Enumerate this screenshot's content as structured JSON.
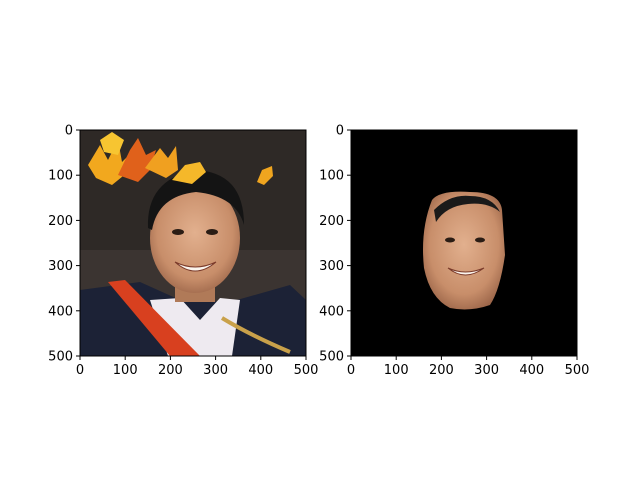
{
  "chart_data": [
    {
      "type": "image",
      "title": "",
      "xlabel": "",
      "ylabel": "",
      "xlim": [
        0,
        500
      ],
      "ylim": [
        500,
        0
      ],
      "xticks": [
        "0",
        "100",
        "200",
        "300",
        "400",
        "500"
      ],
      "yticks": [
        "0",
        "100",
        "200",
        "300",
        "400",
        "500"
      ],
      "content": "portrait-photo",
      "background_color": "#3a3330"
    },
    {
      "type": "image",
      "title": "",
      "xlabel": "",
      "ylabel": "",
      "xlim": [
        0,
        500
      ],
      "ylim": [
        500,
        0
      ],
      "xticks": [
        "0",
        "100",
        "200",
        "300",
        "400",
        "500"
      ],
      "yticks": [
        "0",
        "100",
        "200",
        "300",
        "400",
        "500"
      ],
      "content": "segmented-face-mask",
      "background_color": "#000000"
    }
  ]
}
